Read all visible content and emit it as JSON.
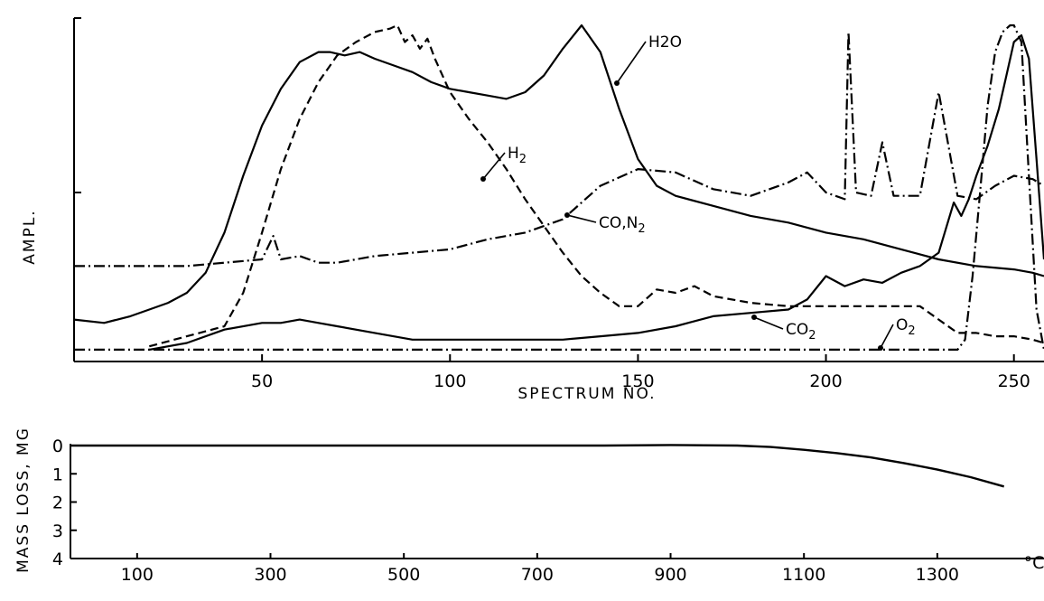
{
  "chart_data": [
    {
      "type": "line",
      "xlabel": "SPECTRUM NO.",
      "ylabel": "AMPL.",
      "xlim": [
        0,
        258
      ],
      "ylim": [
        0,
        100
      ],
      "x_ticks": [
        "50",
        "100",
        "150",
        "200",
        "250"
      ],
      "x_tick_values": [
        50,
        100,
        150,
        200,
        250
      ],
      "grid": false,
      "legend": "none (series labelled inline)",
      "series": [
        {
          "name": "H2O",
          "style": "solid",
          "x": [
            0,
            8,
            15,
            20,
            25,
            30,
            35,
            40,
            45,
            50,
            55,
            60,
            65,
            68,
            72,
            76,
            80,
            85,
            90,
            95,
            100,
            105,
            110,
            115,
            120,
            125,
            130,
            135,
            140,
            145,
            150,
            155,
            160,
            170,
            180,
            190,
            200,
            210,
            220,
            230,
            240,
            250,
            255,
            258
          ],
          "y": [
            12,
            11,
            13,
            15,
            17,
            20,
            26,
            38,
            55,
            70,
            81,
            89,
            92,
            92,
            91,
            92,
            90,
            88,
            86,
            83,
            81,
            80,
            79,
            78,
            80,
            85,
            93,
            100,
            92,
            75,
            60,
            52,
            49,
            46,
            43,
            41,
            38,
            36,
            33,
            30,
            28,
            27,
            26,
            25
          ]
        },
        {
          "name": "H2",
          "style": "dashed",
          "x": [
            20,
            30,
            40,
            45,
            50,
            55,
            60,
            65,
            70,
            75,
            80,
            84,
            86,
            88,
            90,
            92,
            94,
            96,
            100,
            105,
            110,
            115,
            120,
            125,
            130,
            135,
            140,
            145,
            150,
            155,
            160,
            165,
            170,
            180,
            190,
            200,
            210,
            220,
            225,
            230,
            235,
            240,
            245,
            250,
            255,
            258
          ],
          "y": [
            4,
            7,
            10,
            20,
            38,
            57,
            72,
            83,
            91,
            95,
            98,
            99,
            100,
            95,
            97,
            93,
            96,
            90,
            80,
            72,
            65,
            57,
            48,
            40,
            32,
            25,
            20,
            16,
            16,
            21,
            20,
            22,
            19,
            17,
            16,
            16,
            16,
            16,
            16,
            12,
            8,
            8,
            7,
            7,
            6,
            5
          ]
        },
        {
          "name": "CO,N2",
          "style": "dash-dot",
          "x": [
            0,
            30,
            50,
            53,
            55,
            60,
            65,
            70,
            80,
            90,
            100,
            110,
            120,
            130,
            140,
            150,
            160,
            170,
            180,
            190,
            195,
            200,
            205,
            206,
            208,
            212,
            215,
            218,
            225,
            230,
            235,
            240,
            245,
            250,
            255,
            258
          ],
          "y": [
            28,
            28,
            30,
            37,
            30,
            31,
            29,
            29,
            31,
            32,
            33,
            36,
            38,
            42,
            52,
            57,
            56,
            51,
            49,
            53,
            56,
            50,
            48,
            98,
            50,
            49,
            65,
            49,
            49,
            80,
            49,
            48,
            52,
            55,
            54,
            52
          ]
        },
        {
          "name": "CO2",
          "style": "solid",
          "x": [
            20,
            30,
            40,
            50,
            55,
            60,
            65,
            70,
            80,
            90,
            100,
            110,
            120,
            130,
            140,
            150,
            160,
            170,
            180,
            190,
            195,
            200,
            205,
            210,
            215,
            220,
            225,
            230,
            234,
            236,
            238,
            240,
            243,
            246,
            248,
            250,
            252,
            254,
            256,
            258
          ],
          "y": [
            3,
            5,
            9,
            11,
            11,
            12,
            11,
            10,
            8,
            6,
            6,
            6,
            6,
            6,
            7,
            8,
            10,
            13,
            14,
            15,
            18,
            25,
            22,
            24,
            23,
            26,
            28,
            32,
            47,
            43,
            48,
            55,
            64,
            75,
            85,
            95,
            97,
            90,
            60,
            30
          ]
        },
        {
          "name": "O2",
          "style": "dash-dot",
          "x": [
            0,
            50,
            100,
            150,
            200,
            230,
            235,
            237,
            239,
            241,
            243,
            245,
            247,
            249,
            250,
            252,
            254,
            256,
            258
          ],
          "y": [
            3,
            3,
            3,
            3,
            3,
            3,
            3,
            6,
            25,
            50,
            76,
            92,
            98,
            100,
            100,
            95,
            55,
            15,
            3
          ]
        }
      ],
      "annotations": [
        {
          "text": "H2O",
          "at_series": "H2O"
        },
        {
          "text": "H2",
          "at_series": "H2"
        },
        {
          "text": "CO,N2",
          "at_series": "CO,N2"
        },
        {
          "text": "CO2",
          "at_series": "CO2"
        },
        {
          "text": "O2",
          "at_series": "O2"
        }
      ]
    },
    {
      "type": "line",
      "xlabel": "°C",
      "ylabel": "MASS LOSS, MG",
      "xlim": [
        0,
        1460
      ],
      "ylim": [
        4,
        0
      ],
      "x_ticks": [
        "100",
        "300",
        "500",
        "700",
        "900",
        "1100",
        "1300"
      ],
      "x_tick_values": [
        100,
        300,
        500,
        700,
        900,
        1100,
        1300
      ],
      "y_ticks": [
        "0",
        "1",
        "2",
        "3",
        "4"
      ],
      "y_tick_values": [
        0,
        1,
        2,
        3,
        4
      ],
      "grid": false,
      "series": [
        {
          "name": "mass loss",
          "style": "solid",
          "x": [
            0,
            200,
            400,
            600,
            800,
            900,
            1000,
            1050,
            1100,
            1150,
            1200,
            1250,
            1300,
            1350,
            1400
          ],
          "y": [
            0,
            0,
            0,
            0,
            0,
            -0.02,
            0,
            0.05,
            0.15,
            0.27,
            0.42,
            0.62,
            0.85,
            1.12,
            1.45
          ]
        }
      ]
    }
  ]
}
